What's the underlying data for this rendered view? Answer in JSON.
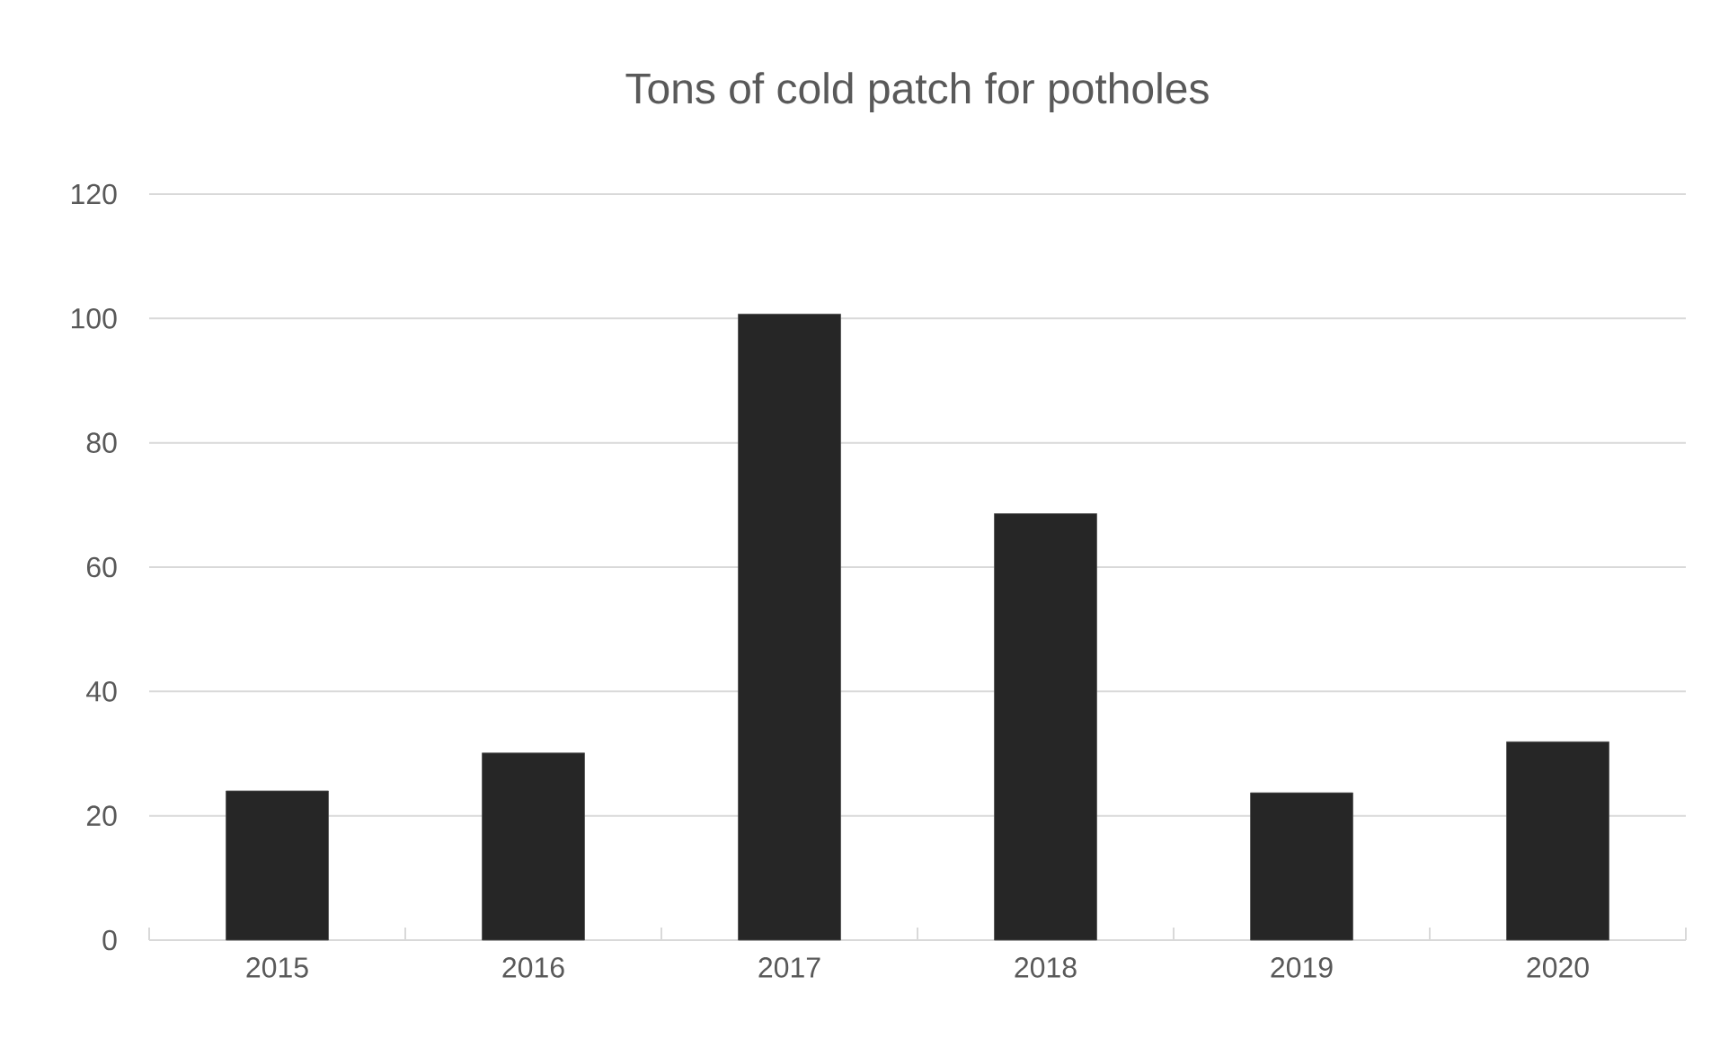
{
  "chart_data": {
    "type": "bar",
    "title": "Tons of cold patch for potholes",
    "categories": [
      "2015",
      "2016",
      "2017",
      "2018",
      "2019",
      "2020"
    ],
    "values": [
      24.0,
      30.1,
      100.7,
      68.6,
      23.7,
      31.9
    ],
    "color": "#262626",
    "ylim": [
      0,
      120
    ],
    "yticks": [
      0,
      20,
      40,
      60,
      80,
      100,
      120
    ],
    "grid": "y"
  }
}
